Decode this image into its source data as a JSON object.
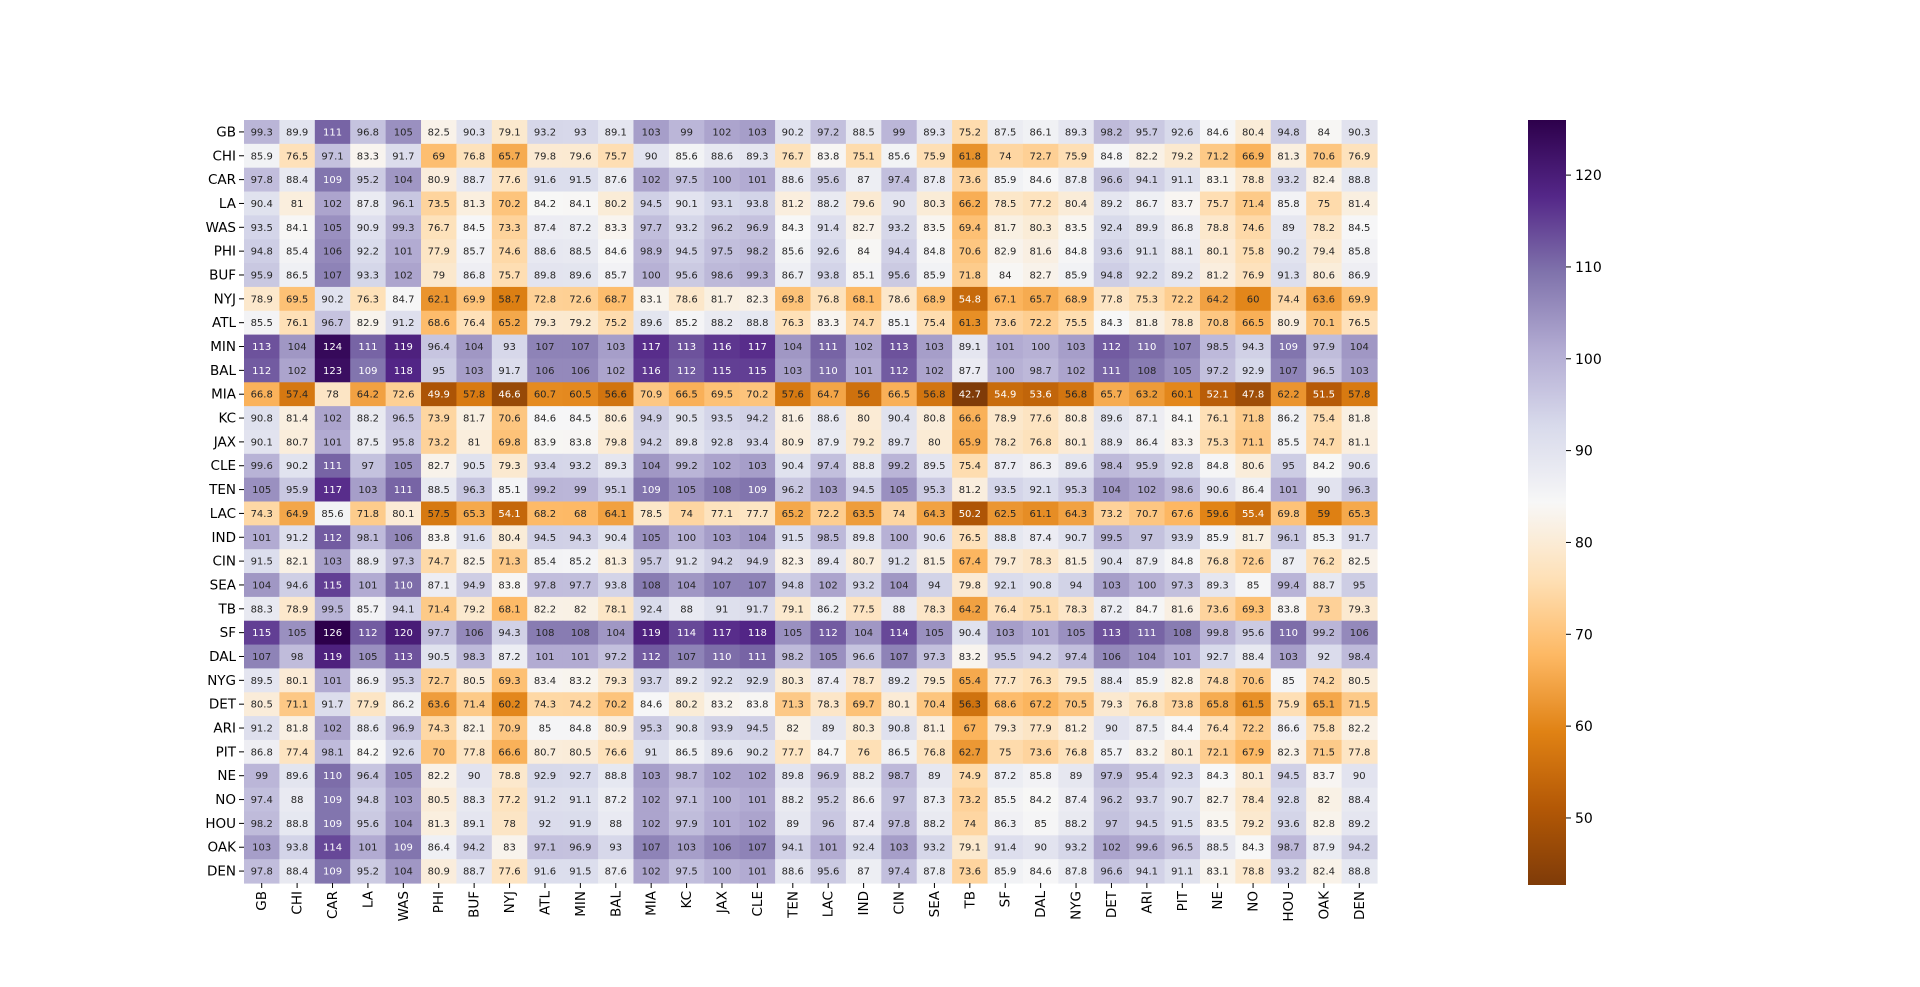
{
  "chart_data": {
    "type": "heatmap",
    "title": "",
    "xlabel": "",
    "ylabel": "",
    "x_labels": [
      "GB",
      "CHI",
      "CAR",
      "LA",
      "WAS",
      "PHI",
      "BUF",
      "NYJ",
      "ATL",
      "MIN",
      "BAL",
      "MIA",
      "KC",
      "JAX",
      "CLE",
      "TEN",
      "LAC",
      "IND",
      "CIN",
      "SEA",
      "TB",
      "SF",
      "DAL",
      "NYG",
      "DET",
      "ARI",
      "PIT",
      "NE",
      "NO",
      "HOU",
      "OAK",
      "DEN"
    ],
    "y_labels": [
      "GB",
      "CHI",
      "CAR",
      "LA",
      "WAS",
      "PHI",
      "BUF",
      "NYJ",
      "ATL",
      "MIN",
      "BAL",
      "MIA",
      "KC",
      "JAX",
      "CLE",
      "TEN",
      "LAC",
      "IND",
      "CIN",
      "SEA",
      "TB",
      "SF",
      "DAL",
      "NYG",
      "DET",
      "ARI",
      "PIT",
      "NE",
      "NO",
      "HOU",
      "OAK",
      "DEN"
    ],
    "values": [
      [
        99.3,
        89.9,
        111,
        96.8,
        105,
        82.5,
        90.3,
        79.1,
        93.2,
        93,
        89.1,
        103,
        99,
        102,
        103,
        90.2,
        97.2,
        88.5,
        99,
        89.3,
        75.2,
        87.5,
        86.1,
        89.3,
        98.2,
        95.7,
        92.6,
        84.6,
        80.4,
        94.8,
        84,
        90.3
      ],
      [
        85.9,
        76.5,
        97.1,
        83.3,
        91.7,
        69,
        76.8,
        65.7,
        79.8,
        79.6,
        75.7,
        90,
        85.6,
        88.6,
        89.3,
        76.7,
        83.8,
        75.1,
        85.6,
        75.9,
        61.8,
        74,
        72.7,
        75.9,
        84.8,
        82.2,
        79.2,
        71.2,
        66.9,
        81.3,
        70.6,
        76.9
      ],
      [
        97.8,
        88.4,
        109,
        95.2,
        104,
        80.9,
        88.7,
        77.6,
        91.6,
        91.5,
        87.6,
        102,
        97.5,
        100,
        101,
        88.6,
        95.6,
        87,
        97.4,
        87.8,
        73.6,
        85.9,
        84.6,
        87.8,
        96.6,
        94.1,
        91.1,
        83.1,
        78.8,
        93.2,
        82.4,
        88.8
      ],
      [
        90.4,
        81,
        102,
        87.8,
        96.1,
        73.5,
        81.3,
        70.2,
        84.2,
        84.1,
        80.2,
        94.5,
        90.1,
        93.1,
        93.8,
        81.2,
        88.2,
        79.6,
        90,
        80.3,
        66.2,
        78.5,
        77.2,
        80.4,
        89.2,
        86.7,
        83.7,
        75.7,
        71.4,
        85.8,
        75,
        81.4
      ],
      [
        93.5,
        84.1,
        105,
        90.9,
        99.3,
        76.7,
        84.5,
        73.3,
        87.4,
        87.2,
        83.3,
        97.7,
        93.2,
        96.2,
        96.9,
        84.3,
        91.4,
        82.7,
        93.2,
        83.5,
        69.4,
        81.7,
        80.3,
        83.5,
        92.4,
        89.9,
        86.8,
        78.8,
        74.6,
        89,
        78.2,
        84.5
      ],
      [
        94.8,
        85.4,
        106,
        92.2,
        101,
        77.9,
        85.7,
        74.6,
        88.6,
        88.5,
        84.6,
        98.9,
        94.5,
        97.5,
        98.2,
        85.6,
        92.6,
        84,
        94.4,
        84.8,
        70.6,
        82.9,
        81.6,
        84.8,
        93.6,
        91.1,
        88.1,
        80.1,
        75.8,
        90.2,
        79.4,
        85.8
      ],
      [
        95.9,
        86.5,
        107,
        93.3,
        102,
        79,
        86.8,
        75.7,
        89.8,
        89.6,
        85.7,
        100,
        95.6,
        98.6,
        99.3,
        86.7,
        93.8,
        85.1,
        95.6,
        85.9,
        71.8,
        84,
        82.7,
        85.9,
        94.8,
        92.2,
        89.2,
        81.2,
        76.9,
        91.3,
        80.6,
        86.9
      ],
      [
        78.9,
        69.5,
        90.2,
        76.3,
        84.7,
        62.1,
        69.9,
        58.7,
        72.8,
        72.6,
        68.7,
        83.1,
        78.6,
        81.7,
        82.3,
        69.8,
        76.8,
        68.1,
        78.6,
        68.9,
        54.8,
        67.1,
        65.7,
        68.9,
        77.8,
        75.3,
        72.2,
        64.2,
        60,
        74.4,
        63.6,
        69.9
      ],
      [
        85.5,
        76.1,
        96.7,
        82.9,
        91.2,
        68.6,
        76.4,
        65.2,
        79.3,
        79.2,
        75.2,
        89.6,
        85.2,
        88.2,
        88.8,
        76.3,
        83.3,
        74.7,
        85.1,
        75.4,
        61.3,
        73.6,
        72.2,
        75.5,
        84.3,
        81.8,
        78.8,
        70.8,
        66.5,
        80.9,
        70.1,
        76.5
      ],
      [
        113,
        104,
        124,
        111,
        119,
        96.4,
        104,
        93,
        107,
        107,
        103,
        117,
        113,
        116,
        117,
        104,
        111,
        102,
        113,
        103,
        89.1,
        101,
        100,
        103,
        112,
        110,
        107,
        98.5,
        94.3,
        109,
        97.9,
        104
      ],
      [
        112,
        102,
        123,
        109,
        118,
        95,
        103,
        91.7,
        106,
        106,
        102,
        116,
        112,
        115,
        115,
        103,
        110,
        101,
        112,
        102,
        87.7,
        100,
        98.7,
        102,
        111,
        108,
        105,
        97.2,
        92.9,
        107,
        96.5,
        103
      ],
      [
        66.8,
        57.4,
        78,
        64.2,
        72.6,
        49.9,
        57.8,
        46.6,
        60.7,
        60.5,
        56.6,
        70.9,
        66.5,
        69.5,
        70.2,
        57.6,
        64.7,
        56,
        66.5,
        56.8,
        42.7,
        54.9,
        53.6,
        56.8,
        65.7,
        63.2,
        60.1,
        52.1,
        47.8,
        62.2,
        51.5,
        57.8
      ],
      [
        90.8,
        81.4,
        102,
        88.2,
        96.5,
        73.9,
        81.7,
        70.6,
        84.6,
        84.5,
        80.6,
        94.9,
        90.5,
        93.5,
        94.2,
        81.6,
        88.6,
        80,
        90.4,
        80.8,
        66.6,
        78.9,
        77.6,
        80.8,
        89.6,
        87.1,
        84.1,
        76.1,
        71.8,
        86.2,
        75.4,
        81.8
      ],
      [
        90.1,
        80.7,
        101,
        87.5,
        95.8,
        73.2,
        81,
        69.8,
        83.9,
        83.8,
        79.8,
        94.2,
        89.8,
        92.8,
        93.4,
        80.9,
        87.9,
        79.2,
        89.7,
        80,
        65.9,
        78.2,
        76.8,
        80.1,
        88.9,
        86.4,
        83.3,
        75.3,
        71.1,
        85.5,
        74.7,
        81.1
      ],
      [
        99.6,
        90.2,
        111,
        97,
        105,
        82.7,
        90.5,
        79.3,
        93.4,
        93.2,
        89.3,
        104,
        99.2,
        102,
        103,
        90.4,
        97.4,
        88.8,
        99.2,
        89.5,
        75.4,
        87.7,
        86.3,
        89.6,
        98.4,
        95.9,
        92.8,
        84.8,
        80.6,
        95,
        84.2,
        90.6
      ],
      [
        105,
        95.9,
        117,
        103,
        111,
        88.5,
        96.3,
        85.1,
        99.2,
        99,
        95.1,
        109,
        105,
        108,
        109,
        96.2,
        103,
        94.5,
        105,
        95.3,
        81.2,
        93.5,
        92.1,
        95.3,
        104,
        102,
        98.6,
        90.6,
        86.4,
        101,
        90,
        96.3
      ],
      [
        74.3,
        64.9,
        85.6,
        71.8,
        80.1,
        57.5,
        65.3,
        54.1,
        68.2,
        68,
        64.1,
        78.5,
        74,
        77.1,
        77.7,
        65.2,
        72.2,
        63.5,
        74,
        64.3,
        50.2,
        62.5,
        61.1,
        64.3,
        73.2,
        70.7,
        67.6,
        59.6,
        55.4,
        69.8,
        59,
        65.3
      ],
      [
        101,
        91.2,
        112,
        98.1,
        106,
        83.8,
        91.6,
        80.4,
        94.5,
        94.3,
        90.4,
        105,
        100,
        103,
        104,
        91.5,
        98.5,
        89.8,
        100,
        90.6,
        76.5,
        88.8,
        87.4,
        90.7,
        99.5,
        97,
        93.9,
        85.9,
        81.7,
        96.1,
        85.3,
        91.7
      ],
      [
        91.5,
        82.1,
        103,
        88.9,
        97.3,
        74.7,
        82.5,
        71.3,
        85.4,
        85.2,
        81.3,
        95.7,
        91.2,
        94.2,
        94.9,
        82.3,
        89.4,
        80.7,
        91.2,
        81.5,
        67.4,
        79.7,
        78.3,
        81.5,
        90.4,
        87.9,
        84.8,
        76.8,
        72.6,
        87,
        76.2,
        82.5
      ],
      [
        104,
        94.6,
        115,
        101,
        110,
        87.1,
        94.9,
        83.8,
        97.8,
        97.7,
        93.8,
        108,
        104,
        107,
        107,
        94.8,
        102,
        93.2,
        104,
        94,
        79.8,
        92.1,
        90.8,
        94,
        103,
        100,
        97.3,
        89.3,
        85,
        99.4,
        88.7,
        95
      ],
      [
        88.3,
        78.9,
        99.5,
        85.7,
        94.1,
        71.4,
        79.2,
        68.1,
        82.2,
        82,
        78.1,
        92.4,
        88,
        91,
        91.7,
        79.1,
        86.2,
        77.5,
        88,
        78.3,
        64.2,
        76.4,
        75.1,
        78.3,
        87.2,
        84.7,
        81.6,
        73.6,
        69.3,
        83.8,
        73,
        79.3
      ],
      [
        115,
        105,
        126,
        112,
        120,
        97.7,
        106,
        94.3,
        108,
        108,
        104,
        119,
        114,
        117,
        118,
        105,
        112,
        104,
        114,
        105,
        90.4,
        103,
        101,
        105,
        113,
        111,
        108,
        99.8,
        95.6,
        110,
        99.2,
        106
      ],
      [
        107,
        98,
        119,
        105,
        113,
        90.5,
        98.3,
        87.2,
        101,
        101,
        97.2,
        112,
        107,
        110,
        111,
        98.2,
        105,
        96.6,
        107,
        97.3,
        83.2,
        95.5,
        94.2,
        97.4,
        106,
        104,
        101,
        92.7,
        88.4,
        103,
        92,
        98.4
      ],
      [
        89.5,
        80.1,
        101,
        86.9,
        95.3,
        72.7,
        80.5,
        69.3,
        83.4,
        83.2,
        79.3,
        93.7,
        89.2,
        92.2,
        92.9,
        80.3,
        87.4,
        78.7,
        89.2,
        79.5,
        65.4,
        77.7,
        76.3,
        79.5,
        88.4,
        85.9,
        82.8,
        74.8,
        70.6,
        85,
        74.2,
        80.5
      ],
      [
        80.5,
        71.1,
        91.7,
        77.9,
        86.2,
        63.6,
        71.4,
        60.2,
        74.3,
        74.2,
        70.2,
        84.6,
        80.2,
        83.2,
        83.8,
        71.3,
        78.3,
        69.7,
        80.1,
        70.4,
        56.3,
        68.6,
        67.2,
        70.5,
        79.3,
        76.8,
        73.8,
        65.8,
        61.5,
        75.9,
        65.1,
        71.5
      ],
      [
        91.2,
        81.8,
        102,
        88.6,
        96.9,
        74.3,
        82.1,
        70.9,
        85,
        84.8,
        80.9,
        95.3,
        90.8,
        93.9,
        94.5,
        82,
        89,
        80.3,
        90.8,
        81.1,
        67,
        79.3,
        77.9,
        81.2,
        90,
        87.5,
        84.4,
        76.4,
        72.2,
        86.6,
        75.8,
        82.2
      ],
      [
        86.8,
        77.4,
        98.1,
        84.2,
        92.6,
        70,
        77.8,
        66.6,
        80.7,
        80.5,
        76.6,
        91,
        86.5,
        89.6,
        90.2,
        77.7,
        84.7,
        76,
        86.5,
        76.8,
        62.7,
        75,
        73.6,
        76.8,
        85.7,
        83.2,
        80.1,
        72.1,
        67.9,
        82.3,
        71.5,
        77.8
      ],
      [
        99,
        89.6,
        110,
        96.4,
        105,
        82.2,
        90,
        78.8,
        92.9,
        92.7,
        88.8,
        103,
        98.7,
        102,
        102,
        89.8,
        96.9,
        88.2,
        98.7,
        89,
        74.9,
        87.2,
        85.8,
        89,
        97.9,
        95.4,
        92.3,
        84.3,
        80.1,
        94.5,
        83.7,
        90
      ],
      [
        97.4,
        88,
        109,
        94.8,
        103,
        80.5,
        88.3,
        77.2,
        91.2,
        91.1,
        87.2,
        102,
        97.1,
        100,
        101,
        88.2,
        95.2,
        86.6,
        97,
        87.3,
        73.2,
        85.5,
        84.2,
        87.4,
        96.2,
        93.7,
        90.7,
        82.7,
        78.4,
        92.8,
        82,
        88.4
      ],
      [
        98.2,
        88.8,
        109,
        95.6,
        104,
        81.3,
        89.1,
        78,
        92,
        91.9,
        88,
        102,
        97.9,
        101,
        102,
        89,
        96,
        87.4,
        97.8,
        88.2,
        74,
        86.3,
        85,
        88.2,
        97,
        94.5,
        91.5,
        83.5,
        79.2,
        93.6,
        82.8,
        89.2
      ],
      [
        103,
        93.8,
        114,
        101,
        109,
        86.4,
        94.2,
        83,
        97.1,
        96.9,
        93,
        107,
        103,
        106,
        107,
        94.1,
        101,
        92.4,
        103,
        93.2,
        79.1,
        91.4,
        90,
        93.2,
        102,
        99.6,
        96.5,
        88.5,
        84.3,
        98.7,
        87.9,
        94.2
      ],
      [
        97.8,
        88.4,
        109,
        95.2,
        104,
        80.9,
        88.7,
        77.6,
        91.6,
        91.5,
        87.6,
        102,
        97.5,
        100,
        101,
        88.6,
        95.6,
        87,
        97.4,
        87.8,
        73.6,
        85.9,
        84.6,
        87.8,
        96.6,
        94.1,
        91.1,
        83.1,
        78.8,
        93.2,
        82.4,
        88.8
      ]
    ],
    "colormap": "PuOr",
    "vmin": 42.7,
    "vmax": 126,
    "colorbar_ticks": [
      50,
      60,
      70,
      80,
      90,
      100,
      110,
      120
    ],
    "legend": "colorbar-right",
    "grid": false
  }
}
